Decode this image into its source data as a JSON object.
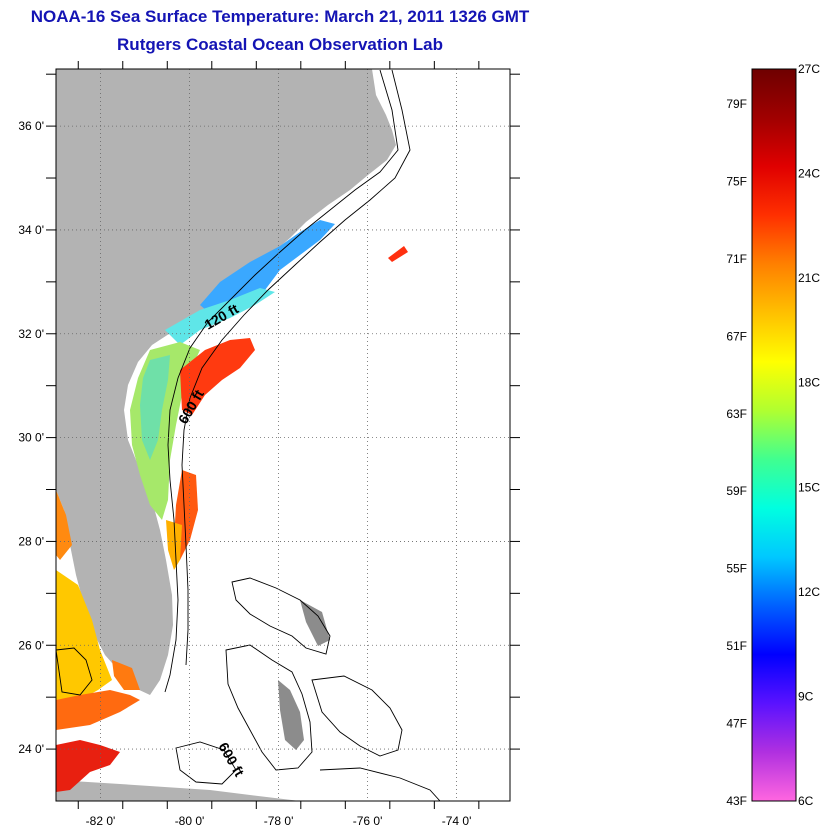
{
  "title": "NOAA-16 Sea Surface Temperature:  March 21, 2011 1326 GMT",
  "subtitle": "Rutgers Coastal Ocean Observation Lab",
  "map": {
    "lat_ticks": [
      {
        "value": 36,
        "label": "36 0'"
      },
      {
        "value": 34,
        "label": "34 0'"
      },
      {
        "value": 32,
        "label": "32 0'"
      },
      {
        "value": 30,
        "label": "30 0'"
      },
      {
        "value": 28,
        "label": "28 0'"
      },
      {
        "value": 26,
        "label": "26 0'"
      },
      {
        "value": 24,
        "label": "24 0'"
      }
    ],
    "lon_ticks": [
      {
        "value": -82,
        "label": "-82 0'"
      },
      {
        "value": -80,
        "label": "-80 0'"
      },
      {
        "value": -78,
        "label": "-78 0'"
      },
      {
        "value": -76,
        "label": "-76 0'"
      },
      {
        "value": -74,
        "label": "-74 0'"
      }
    ],
    "contour_labels": [
      "120 ft",
      "600 ft",
      "600 ft"
    ],
    "colors": {
      "land": "#b3b3b3",
      "water_nodata": "#ffffff",
      "grid": "#555555",
      "contour": "#000000"
    }
  },
  "colorbar": {
    "fahrenheit_labels": [
      "79F",
      "75F",
      "71F",
      "67F",
      "63F",
      "59F",
      "55F",
      "51F",
      "47F",
      "43F"
    ],
    "celsius_labels": [
      "27C",
      "24C",
      "21C",
      "18C",
      "15C",
      "12C",
      "9C",
      "6C"
    ],
    "range_c": [
      6,
      27
    ],
    "gradient": [
      "#ff66e0",
      "#b030e0",
      "#5a12ff",
      "#0000ff",
      "#0060ff",
      "#00c8ff",
      "#00ffe0",
      "#40ff90",
      "#b0ff30",
      "#ffff00",
      "#ffc000",
      "#ff8000",
      "#ff3000",
      "#e00000",
      "#a00000",
      "#6e0000"
    ]
  }
}
